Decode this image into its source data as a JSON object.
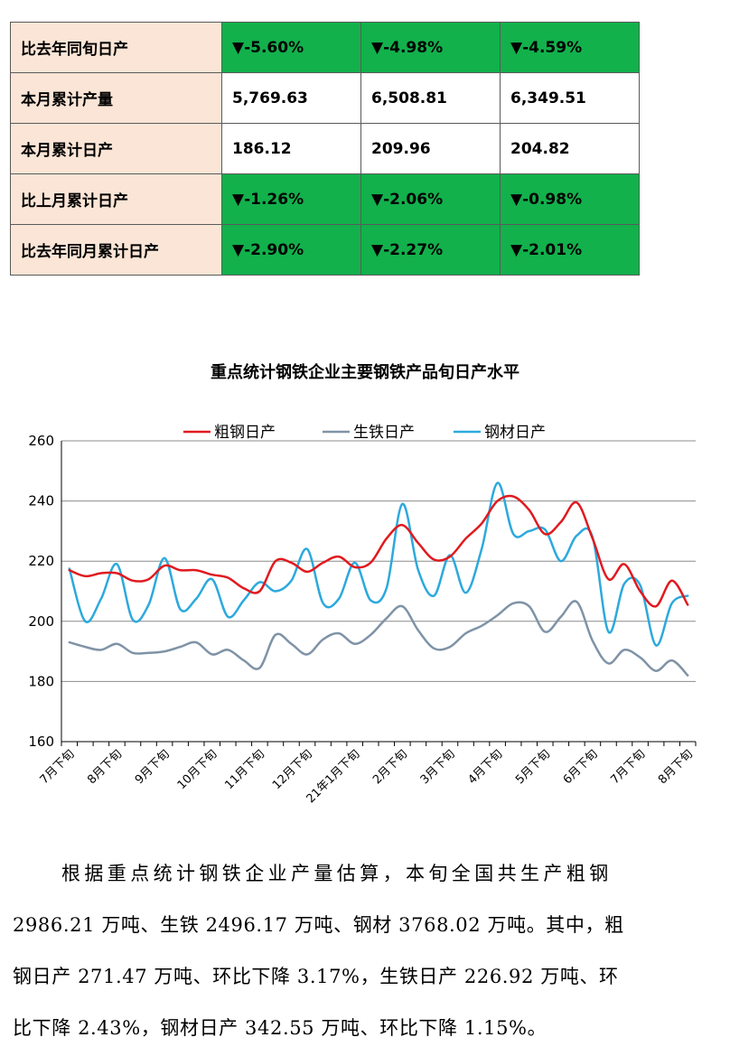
{
  "table": {
    "rows": [
      {
        "label": "比去年同旬日产",
        "highlight": true,
        "values": [
          "▼-5.60%",
          "▼-4.98%",
          "▼-4.59%"
        ]
      },
      {
        "label": "本月累计产量",
        "highlight": false,
        "values": [
          "5,769.63",
          "6,508.81",
          "6,349.51"
        ]
      },
      {
        "label": "本月累计日产",
        "highlight": false,
        "values": [
          "186.12",
          "209.96",
          "204.82"
        ]
      },
      {
        "label": "比上月累计日产",
        "highlight": true,
        "values": [
          "▼-1.26%",
          "▼-2.06%",
          "▼-0.98%"
        ]
      },
      {
        "label": "比去年同月累计日产",
        "highlight": true,
        "values": [
          "▼-2.90%",
          "▼-2.27%",
          "▼-2.01%"
        ]
      }
    ],
    "colors": {
      "label_bg": "#fbe5d6",
      "highlight_bg": "#12b14c"
    }
  },
  "chart_data": {
    "type": "line",
    "title": "重点统计钢铁企业主要钢铁产品旬日产水平",
    "ylim": [
      160,
      260
    ],
    "yticks": [
      160,
      180,
      200,
      220,
      240,
      260
    ],
    "legend_position": "top",
    "grid": "horizontal",
    "x_tick_labels": [
      "7月下旬",
      "8月下旬",
      "9月下旬",
      "10月下旬",
      "11月下旬",
      "12月下旬",
      "21年1月下旬",
      "2月下旬",
      "3月下旬",
      "4月下旬",
      "5月下旬",
      "6月下旬",
      "7月下旬",
      "8月下旬"
    ],
    "x_tick_positions": [
      0,
      3,
      6,
      9,
      12,
      15,
      18,
      21,
      24,
      27,
      30,
      33,
      36,
      39
    ],
    "x_count": 40,
    "series": [
      {
        "name": "粗钢日产",
        "color": "#e01a1f",
        "values": [
          217,
          215,
          216,
          216,
          213.5,
          214,
          218.5,
          217,
          217,
          215.5,
          214.5,
          211,
          210,
          220,
          219.5,
          216.5,
          219.5,
          221.5,
          218,
          219.5,
          227.5,
          232,
          226,
          220.5,
          221.5,
          227.5,
          232.5,
          240,
          241.5,
          237,
          229,
          233,
          239.5,
          227.5,
          214,
          219,
          210,
          205,
          213.5,
          205.5
        ]
      },
      {
        "name": "生铁日产",
        "color": "#7f93a6",
        "values": [
          193,
          191.5,
          190.5,
          192.5,
          189.5,
          189.5,
          190,
          191.5,
          193,
          189,
          190.5,
          187,
          184.5,
          195.5,
          192.5,
          189,
          194,
          196,
          192.5,
          195.5,
          201,
          205,
          197,
          191,
          191.5,
          196,
          198.5,
          202,
          206,
          205,
          196.5,
          201.5,
          206.5,
          193.5,
          186,
          190.5,
          188,
          183.5,
          187,
          182
        ]
      },
      {
        "name": "钢材日产",
        "color": "#2ca9dd",
        "values": [
          217.5,
          200,
          207.5,
          219,
          200.5,
          205.5,
          221,
          204,
          207.5,
          214,
          201.5,
          207,
          213,
          210,
          213.5,
          224,
          206,
          207.5,
          219.5,
          207,
          211,
          239,
          217,
          208.5,
          222,
          209.5,
          224,
          246,
          229,
          230,
          230.5,
          220,
          228.5,
          228,
          196.5,
          212.5,
          212,
          192,
          206,
          208.5
        ]
      }
    ]
  },
  "paragraphs": [
    "根据重点统计钢铁企业产量估算，本旬全国共生产粗钢",
    "2986.21 万吨、生铁 2496.17 万吨、钢材 3768.02 万吨。其中，粗",
    "钢日产 271.47 万吨、环比下降 3.17%，生铁日产 226.92 万吨、环",
    "比下降 2.43%，钢材日产 342.55 万吨、环比下降 1.15%。"
  ]
}
